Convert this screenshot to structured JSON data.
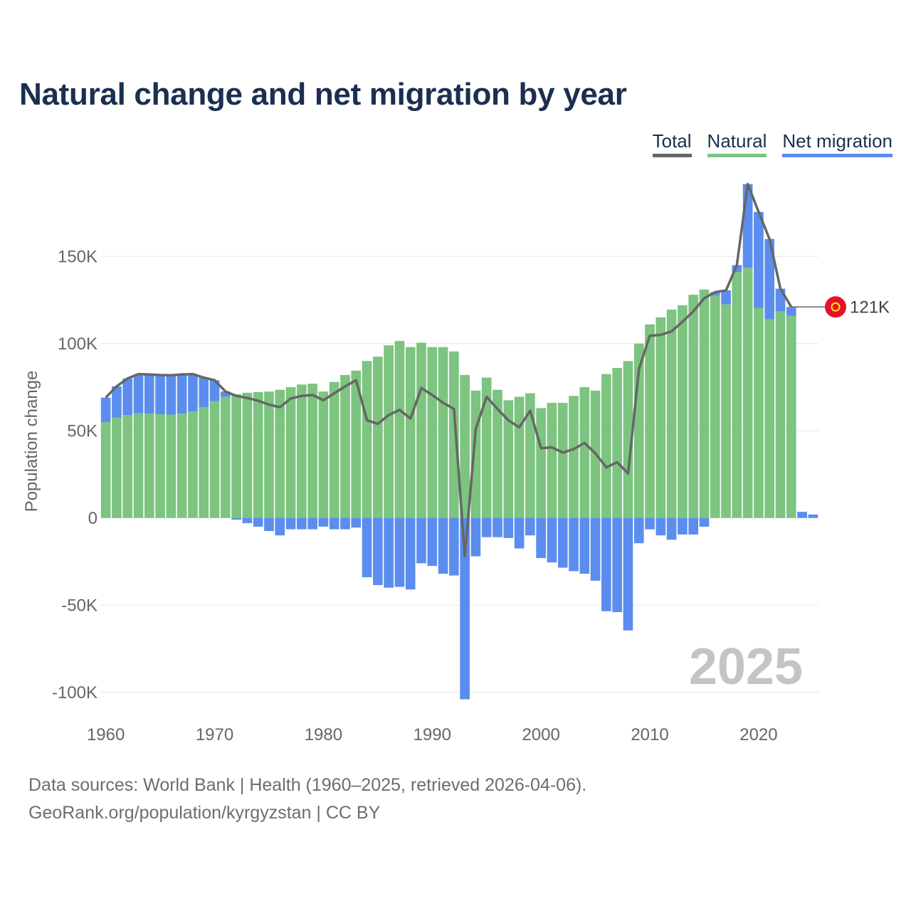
{
  "title": "Natural change and net migration by year",
  "legend": [
    {
      "label": "Total",
      "color": "#666666"
    },
    {
      "label": "Natural",
      "color": "#7cc47f"
    },
    {
      "label": "Net migration",
      "color": "#5b8def"
    }
  ],
  "footer": {
    "line1": "Data sources: World Bank | Health (1960–2025, retrieved 2026-04-06).",
    "line2": "GeoRank.org/population/kyrgyzstan | CC BY"
  },
  "current_year_label": "2025",
  "end_label": "121K",
  "flag_icon": "kyrgyzstan-flag-icon",
  "colors": {
    "natural": "#7cc47f",
    "migration": "#5b8def",
    "total": "#666666",
    "grid": "#e6e6e6",
    "axis_text": "#666666",
    "year_watermark": "#c4c4c4",
    "flag_red": "#e8112d",
    "flag_sun": "#ffef00"
  },
  "chart_data": {
    "type": "bar",
    "stacked": true,
    "title": "Natural change and net migration by year",
    "xlabel": "",
    "ylabel": "Population change",
    "ylim": [
      -105000,
      195000
    ],
    "yticks": [
      -100000,
      -50000,
      0,
      50000,
      100000,
      150000
    ],
    "ytick_labels": [
      "-100K",
      "-50K",
      "0",
      "50K",
      "100K",
      "150K"
    ],
    "xticks": [
      1960,
      1970,
      1980,
      1990,
      2000,
      2010,
      2020
    ],
    "x": [
      1960,
      1961,
      1962,
      1963,
      1964,
      1965,
      1966,
      1967,
      1968,
      1969,
      1970,
      1971,
      1972,
      1973,
      1974,
      1975,
      1976,
      1977,
      1978,
      1979,
      1980,
      1981,
      1982,
      1983,
      1984,
      1985,
      1986,
      1987,
      1988,
      1989,
      1990,
      1991,
      1992,
      1993,
      1994,
      1995,
      1996,
      1997,
      1998,
      1999,
      2000,
      2001,
      2002,
      2003,
      2004,
      2005,
      2006,
      2007,
      2008,
      2009,
      2010,
      2011,
      2012,
      2013,
      2014,
      2015,
      2016,
      2017,
      2018,
      2019,
      2020,
      2021,
      2022,
      2023,
      2024,
      2025
    ],
    "series": [
      {
        "name": "Natural",
        "values": [
          55000,
          57500,
          59000,
          60000,
          59800,
          59500,
          59300,
          59800,
          61000,
          63500,
          67000,
          69500,
          71000,
          71800,
          72200,
          72500,
          73500,
          75000,
          76500,
          77000,
          72500,
          78000,
          82000,
          84500,
          90000,
          92500,
          99000,
          101500,
          98000,
          100500,
          98000,
          98000,
          95500,
          82000,
          73000,
          80500,
          73500,
          67500,
          69500,
          71500,
          63000,
          66000,
          66000,
          70000,
          75000,
          73000,
          82500,
          86000,
          90000,
          100000,
          111000,
          115000,
          119500,
          122000,
          128000,
          131000,
          127500,
          122500,
          141000,
          143500,
          120500,
          114000,
          118500,
          116000,
          0,
          0
        ]
      },
      {
        "name": "Net migration",
        "values": [
          14000,
          18000,
          21000,
          22500,
          22500,
          22500,
          22500,
          22500,
          21500,
          17000,
          12000,
          3000,
          -1000,
          -3000,
          -5000,
          -7500,
          -10000,
          -6500,
          -6500,
          -6500,
          -5000,
          -6500,
          -6500,
          -5500,
          -34000,
          -38500,
          -40000,
          -39500,
          -41000,
          -26000,
          -27500,
          -32000,
          -33000,
          -104000,
          -22000,
          -11000,
          -11000,
          -11500,
          -17500,
          -10000,
          -23000,
          -25500,
          -28500,
          -30500,
          -32000,
          -36000,
          -53500,
          -54000,
          -64500,
          -14500,
          -6500,
          -10000,
          -12500,
          -9500,
          -9500,
          -5000,
          2000,
          8000,
          4000,
          48000,
          55000,
          46000,
          13000,
          5000,
          3500,
          2000
        ]
      },
      {
        "name": "Total",
        "values": [
          69000,
          75500,
          80000,
          82500,
          82300,
          82000,
          81800,
          82300,
          82500,
          80500,
          79000,
          72500,
          70000,
          68800,
          67200,
          65000,
          63500,
          68500,
          70000,
          70500,
          67500,
          71500,
          75500,
          79000,
          56000,
          54000,
          59000,
          62000,
          57000,
          74500,
          70500,
          66000,
          62500,
          -22000,
          51000,
          69500,
          62500,
          56000,
          52000,
          61500,
          40000,
          40500,
          37500,
          39500,
          43000,
          37000,
          29000,
          32000,
          25500,
          85500,
          104500,
          105000,
          107000,
          112500,
          118500,
          126000,
          129500,
          130500,
          145000,
          191500,
          175500,
          160000,
          131500,
          121000,
          null,
          null
        ]
      }
    ]
  }
}
